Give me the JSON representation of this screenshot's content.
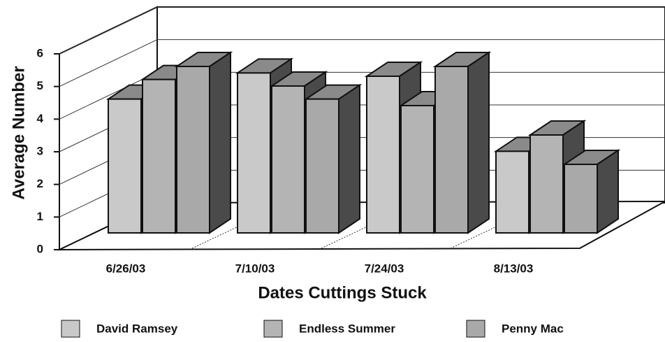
{
  "chart_data": {
    "type": "bar3d",
    "y_label": "Average Number",
    "x_label": "Dates Cuttings Stuck",
    "categories": [
      "6/26/03",
      "7/10/03",
      "7/24/03",
      "8/13/03"
    ],
    "series": [
      {
        "name": "David Ramsey",
        "color": "#c9c9c9",
        "values": [
          4.1,
          4.9,
          4.8,
          2.5
        ]
      },
      {
        "name": "Endless Summer",
        "color": "#b4b4b4",
        "values": [
          4.7,
          4.5,
          3.9,
          3.0
        ]
      },
      {
        "name": "Penny Mac",
        "color": "#a9a9a9",
        "values": [
          5.1,
          4.1,
          5.1,
          2.1
        ]
      }
    ],
    "ylim": [
      0,
      6
    ],
    "yticks": [
      0,
      1,
      2,
      3,
      4,
      5,
      6
    ],
    "grid": true
  }
}
